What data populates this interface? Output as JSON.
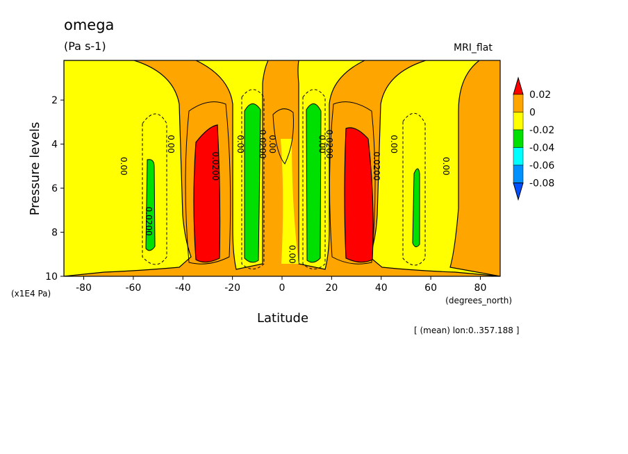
{
  "title": "omega",
  "units": "(Pa s-1)",
  "source": "MRI_flat",
  "note": "[ (mean) lon:0..357.188 ]",
  "chart_data": {
    "type": "contour",
    "xlabel": "Latitude",
    "xunits": "(degrees_north)",
    "ylabel": "Pressure levels",
    "yunits": "(x1E4 Pa)",
    "xlim": [
      -88,
      88
    ],
    "ylim": [
      10,
      0.2
    ],
    "xticks": [
      -80,
      -60,
      -40,
      -20,
      0,
      20,
      40,
      60,
      80
    ],
    "yticks": [
      2,
      4,
      6,
      8,
      10
    ],
    "colorbar": {
      "levels": [
        "0.02",
        "0",
        "-0.02",
        "-0.04",
        "-0.06",
        "-0.08"
      ],
      "colors": [
        "#ff0000",
        "#ffa500",
        "#ffff00",
        "#00e000",
        "#00ffff",
        "#0090ff",
        "#0050ff"
      ]
    },
    "contour_labels": [
      {
        "text": "0.00",
        "x": -65,
        "y": 5
      },
      {
        "text": "0.0200",
        "x": -55,
        "y": 7.5
      },
      {
        "text": "0.00",
        "x": -46,
        "y": 4
      },
      {
        "text": "0.0200",
        "x": -28,
        "y": 5
      },
      {
        "text": "0.00",
        "x": -18,
        "y": 4
      },
      {
        "text": "0.0200",
        "x": -9,
        "y": 4
      },
      {
        "text": "0.00",
        "x": -5,
        "y": 4
      },
      {
        "text": "0.00",
        "x": 3,
        "y": 9
      },
      {
        "text": "0.00",
        "x": 15,
        "y": 4
      },
      {
        "text": "0.0200",
        "x": 18,
        "y": 4
      },
      {
        "text": "0.0200",
        "x": 37,
        "y": 5
      },
      {
        "text": "0.00",
        "x": 44,
        "y": 4
      },
      {
        "text": "0.00",
        "x": 65,
        "y": 5
      }
    ]
  }
}
